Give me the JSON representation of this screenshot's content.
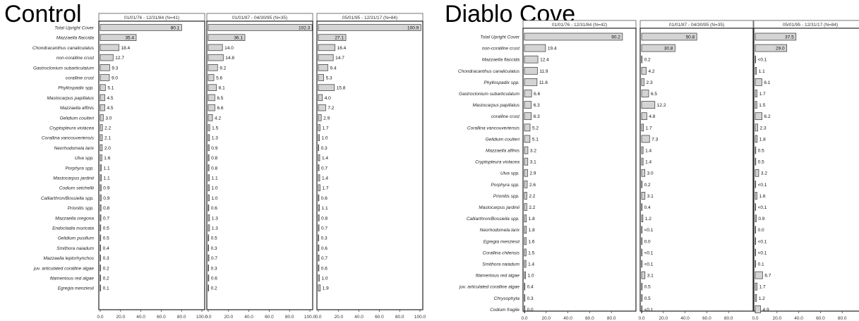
{
  "chart_data": [
    {
      "type": "bar",
      "title": "Control",
      "xlim": [
        0,
        100
      ],
      "xticks": [
        "0.0",
        "20.0",
        "40.0",
        "60.0",
        "80.0",
        "100.0"
      ],
      "categories": [
        "Total Upright Cover",
        "Mazzaella flaccida",
        "Chondracanthus canaliculatus",
        "non-coralline crust",
        "Gastroclonium subarticulatum",
        "coralline crust",
        "Phyllospadix spp.",
        "Mastocarpus papillatus",
        "Mazzaella affinis",
        "Gelidium coulteri",
        "Cryptopleura violacea",
        "Corallina vancouveriensis",
        "Neorhodomela larix",
        "Ulva spp.",
        "Porphyra spp.",
        "Mastocarpus jardinii",
        "Codium setchellii",
        "Calliarthron/Bossiella spp.",
        "Prionitis spp.",
        "Mazzaella oregona",
        "Endocladia muricata",
        "Gelidium pusillum",
        "Smithora naiadum",
        "Mazzaella leptorhynchos",
        "juv. articulated coralline algae",
        "filamentous red algae",
        "Egregia menziesii"
      ],
      "series": [
        {
          "name": "01/01/76 - 12/31/84 (N=41)",
          "values": [
            80.1,
            35.4,
            18.4,
            12.7,
            9.3,
            9.0,
            5.1,
            4.5,
            4.5,
            3.0,
            2.2,
            2.1,
            2.0,
            1.6,
            1.1,
            1.1,
            0.9,
            0.9,
            0.8,
            0.7,
            0.5,
            0.5,
            0.4,
            0.3,
            0.2,
            0.2,
            0.1
          ],
          "labels": [
            "80.1",
            "35.4",
            "18.4",
            "12.7",
            "9.3",
            "9.0",
            "5.1",
            "4.5",
            "4.5",
            "3.0",
            "2.2",
            "2.1",
            "2.0",
            "1.6",
            "1.1",
            "1.1",
            "0.9",
            "0.9",
            "0.8",
            "0.7",
            "0.5",
            "0.5",
            "0.4",
            "0.3",
            "0.2",
            "0.2",
            "0.1"
          ]
        },
        {
          "name": "01/01/87 - 04/30/95 (N=35)",
          "values": [
            102.3,
            36.1,
            14.0,
            14.8,
            9.2,
            5.6,
            8.1,
            6.5,
            6.6,
            4.2,
            1.5,
            1.3,
            0.9,
            0.8,
            0.8,
            1.1,
            1.0,
            1.0,
            0.6,
            1.3,
            1.3,
            0.5,
            0.3,
            0.7,
            0.3,
            0.6,
            0.2
          ],
          "labels": [
            "102.3",
            "36.1",
            "14.0",
            "14.8",
            "9.2",
            "5.6",
            "8.1",
            "6.5",
            "6.6",
            "4.2",
            "1.5",
            "1.3",
            "0.9",
            "0.8",
            "0.8",
            "1.1",
            "1.0",
            "1.0",
            "0.6",
            "1.3",
            "1.3",
            "0.5",
            "0.3",
            "0.7",
            "0.3",
            "0.6",
            "0.2"
          ]
        },
        {
          "name": "05/01/95 - 12/31/17 (N=84)",
          "values": [
            100.9,
            27.1,
            16.4,
            14.7,
            9.4,
            5.3,
            15.8,
            4.0,
            7.2,
            2.9,
            1.7,
            1.0,
            0.3,
            1.4,
            0.7,
            1.4,
            1.7,
            0.6,
            1.1,
            0.8,
            0.7,
            0.3,
            0.6,
            0.7,
            0.6,
            1.0,
            1.9
          ],
          "labels": [
            "100.9",
            "27.1",
            "16.4",
            "14.7",
            "9.4",
            "5.3",
            "15.8",
            "4.0",
            "7.2",
            "2.9",
            "1.7",
            "1.0",
            "0.3",
            "1.4",
            "0.7",
            "1.4",
            "1.7",
            "0.6",
            "1.1",
            "0.8",
            "0.7",
            "0.3",
            "0.6",
            "0.7",
            "0.6",
            "1.0",
            "1.9"
          ]
        }
      ]
    },
    {
      "type": "bar",
      "title": "Diablo Cove",
      "xlim": [
        0,
        100
      ],
      "xticks": [
        "0.0",
        "20.0",
        "40.0",
        "60.0",
        "80.0"
      ],
      "categories": [
        "Total Upright Cover",
        "non-coralline crust",
        "Mazzaella flaccida",
        "Chondracanthus canaliculatus",
        "Phyllospadix spp.",
        "Gastroclonium subarticulatum",
        "Mastocarpus papillatus",
        "coralline crust",
        "Corallina vancouveriensis",
        "Gelidium coulteri",
        "Mazzaella affinis",
        "Cryptopleura violacea",
        "Ulva spp.",
        "Porphyra spp.",
        "Prionitis spp.",
        "Mastocarpus jardinii",
        "Calliarthron/Bossiella spp.",
        "Neorhodomela larix",
        "Egregia menziesii",
        "Corallina chilensis",
        "Smithora naiadum",
        "filamentous red algae",
        "juv. articulated coralline algae",
        "Chrysophyta",
        "Codium fragile"
      ],
      "series": [
        {
          "name": "01/01/76 - 12/31/84 (N=42)",
          "values": [
            90.2,
            19.4,
            12.4,
            11.9,
            11.6,
            6.6,
            6.3,
            6.3,
            5.2,
            5.1,
            3.2,
            3.1,
            2.9,
            2.6,
            2.2,
            2.2,
            1.8,
            1.8,
            1.6,
            1.5,
            1.4,
            1.0,
            0.4,
            0.3,
            0.0
          ],
          "labels": [
            "90.2",
            "19.4",
            "12.4",
            "11.9",
            "11.6",
            "6.6",
            "6.3",
            "6.3",
            "5.2",
            "5.1",
            "3.2",
            "3.1",
            "2.9",
            "2.6",
            "2.2",
            "2.2",
            "1.8",
            "1.8",
            "1.6",
            "1.5",
            "1.4",
            "1.0",
            "0.4",
            "0.3",
            "0.0"
          ]
        },
        {
          "name": "01/01/87 - 04/30/95 (N=35)",
          "values": [
            50.8,
            30.8,
            0.2,
            4.2,
            2.3,
            6.5,
            12.2,
            4.8,
            1.7,
            7.3,
            1.4,
            1.4,
            3.0,
            0.2,
            3.1,
            0.4,
            1.2,
            0.05,
            0.0,
            0.05,
            0.05,
            3.1,
            0.5,
            0.5,
            0.05
          ],
          "labels": [
            "50.8",
            "30.8",
            "0.2",
            "4.2",
            "2.3",
            "6.5",
            "12.2",
            "4.8",
            "1.7",
            "7.3",
            "1.4",
            "1.4",
            "3.0",
            "0.2",
            "3.1",
            "0.4",
            "1.2",
            "<0.1",
            "0.0",
            "<0.1",
            "<0.1",
            "3.1",
            "0.5",
            "0.5",
            "<0.1"
          ]
        },
        {
          "name": "05/01/95 - 12/31/17 (N=84)",
          "values": [
            37.5,
            29.0,
            0.05,
            1.1,
            6.1,
            1.7,
            1.5,
            6.2,
            2.3,
            1.8,
            0.5,
            0.5,
            3.2,
            0.05,
            1.6,
            0.05,
            0.9,
            0.0,
            0.05,
            0.05,
            0.1,
            6.7,
            1.7,
            1.2,
            4.9
          ],
          "labels": [
            "37.5",
            "29.0",
            "<0.1",
            "1.1",
            "6.1",
            "1.7",
            "1.5",
            "6.2",
            "2.3",
            "1.8",
            "0.5",
            "0.5",
            "3.2",
            "<0.1",
            "1.6",
            "<0.1",
            "0.9",
            "0.0",
            "<0.1",
            "<0.1",
            "0.1",
            "6.7",
            "1.7",
            "1.2",
            "4.9"
          ]
        }
      ]
    }
  ]
}
